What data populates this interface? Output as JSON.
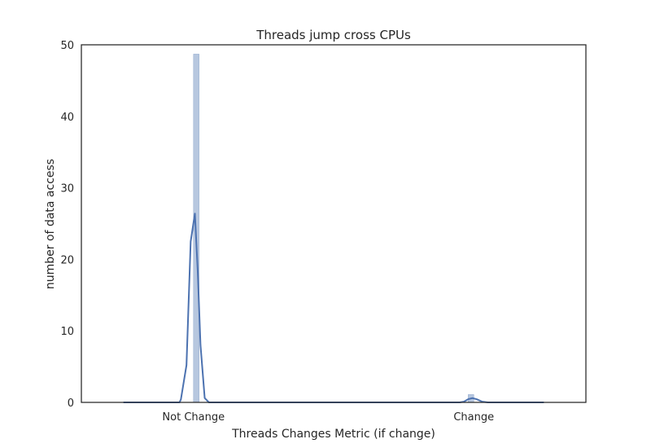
{
  "chart_data": {
    "type": "bar",
    "title": "Threads jump cross CPUs",
    "xlabel": "Threads Changes Metric (if change)",
    "ylabel": "number of data access",
    "x_ticks": [
      {
        "label": "Not Change",
        "value": 0
      },
      {
        "label": "Change",
        "value": 1
      }
    ],
    "y_ticks": [
      0,
      10,
      20,
      30,
      40,
      50
    ],
    "xlim": [
      -0.4,
      1.4
    ],
    "ylim": [
      0,
      50
    ],
    "grid": false,
    "colors": {
      "bar": "#4c72b0",
      "kde": "#4c72b0",
      "axes": "#262626"
    },
    "histogram": {
      "bar_width": 0.02,
      "bars": [
        {
          "x": 0.01,
          "value": 48.7
        },
        {
          "x": 0.99,
          "value": 1.1
        }
      ]
    },
    "kde": {
      "name": "",
      "points": [
        [
          -0.25,
          0
        ],
        [
          -0.05,
          0
        ],
        [
          -0.045,
          0.4
        ],
        [
          -0.025,
          5.2
        ],
        [
          -0.01,
          22.5
        ],
        [
          0.005,
          26.4
        ],
        [
          0.015,
          18.5
        ],
        [
          0.025,
          8.0
        ],
        [
          0.04,
          0.6
        ],
        [
          0.055,
          0
        ],
        [
          0.95,
          0
        ],
        [
          0.965,
          0.1
        ],
        [
          0.98,
          0.45
        ],
        [
          0.995,
          0.6
        ],
        [
          1.01,
          0.45
        ],
        [
          1.03,
          0.1
        ],
        [
          1.05,
          0
        ],
        [
          1.25,
          0
        ]
      ]
    }
  }
}
